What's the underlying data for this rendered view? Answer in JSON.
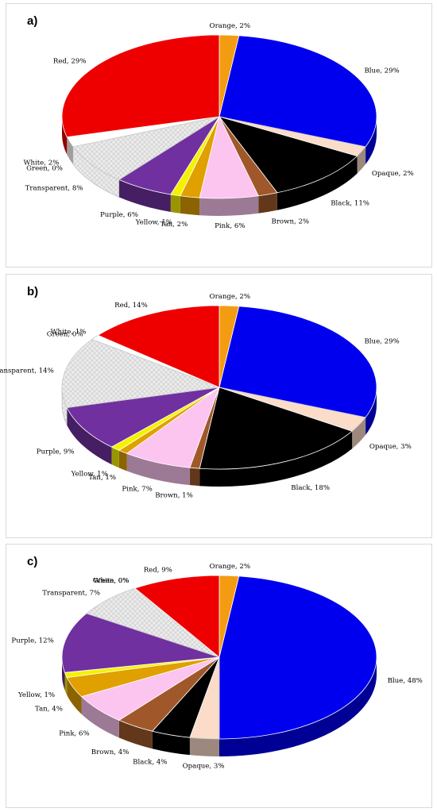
{
  "colors": {
    "Orange": "#f39c12",
    "Blue": "#0000ee",
    "Opaque": "#fbdcc8",
    "Black": "#000000",
    "Brown": "#a0582a",
    "Pink": "#fbc5f0",
    "Tan": "#e0a000",
    "Yellow": "#f5f200",
    "Purple": "#7030a0",
    "Transparent": "#e9e9e9",
    "Green": "#00a000",
    "White": "#ffffff",
    "Red": "#ee0000"
  },
  "chart_data": [
    {
      "panel_label": "a)",
      "type": "pie",
      "slices": [
        {
          "name": "Orange",
          "value": 2,
          "label": "Orange, 2%"
        },
        {
          "name": "Blue",
          "value": 29,
          "label": "Blue, 29%"
        },
        {
          "name": "Opaque",
          "value": 2,
          "label": "Opaque, 2%"
        },
        {
          "name": "Black",
          "value": 11,
          "label": "Black, 11%"
        },
        {
          "name": "Brown",
          "value": 2,
          "label": "Brown, 2%"
        },
        {
          "name": "Pink",
          "value": 6,
          "label": "Pink, 6%"
        },
        {
          "name": "Tan",
          "value": 2,
          "label": "Tan, 2%"
        },
        {
          "name": "Yellow",
          "value": 1,
          "label": "Yellow, 1%"
        },
        {
          "name": "Purple",
          "value": 6,
          "label": "Purple, 6%"
        },
        {
          "name": "Transparent",
          "value": 8,
          "label": "Transparent, 8%"
        },
        {
          "name": "Green",
          "value": 0,
          "label": "Green, 0%"
        },
        {
          "name": "White",
          "value": 2,
          "label": "White, 2%"
        },
        {
          "name": "Red",
          "value": 29,
          "label": "Red, 29%"
        }
      ]
    },
    {
      "panel_label": "b)",
      "type": "pie",
      "slices": [
        {
          "name": "Orange",
          "value": 2,
          "label": "Orange, 2%"
        },
        {
          "name": "Blue",
          "value": 29,
          "label": "Blue, 29%"
        },
        {
          "name": "Opaque",
          "value": 3,
          "label": "Opaque, 3%"
        },
        {
          "name": "Black",
          "value": 18,
          "label": "Black, 18%"
        },
        {
          "name": "Brown",
          "value": 1,
          "label": "Brown, 1%"
        },
        {
          "name": "Pink",
          "value": 7,
          "label": "Pink, 7%"
        },
        {
          "name": "Tan",
          "value": 1,
          "label": "Tan, 1%"
        },
        {
          "name": "Yellow",
          "value": 1,
          "label": "Yellow, 1%"
        },
        {
          "name": "Purple",
          "value": 9,
          "label": "Purple, 9%"
        },
        {
          "name": "Transparent",
          "value": 14,
          "label": "Transparent, 14%"
        },
        {
          "name": "Green",
          "value": 0,
          "label": "Green, 0%"
        },
        {
          "name": "White",
          "value": 1,
          "label": "White, 1%"
        },
        {
          "name": "Red",
          "value": 14,
          "label": "Red, 14%"
        }
      ]
    },
    {
      "panel_label": "c)",
      "type": "pie",
      "slices": [
        {
          "name": "Orange",
          "value": 2,
          "label": "Orange, 2%"
        },
        {
          "name": "Blue",
          "value": 48,
          "label": "Blue, 48%"
        },
        {
          "name": "Opaque",
          "value": 3,
          "label": "Opaque, 3%"
        },
        {
          "name": "Black",
          "value": 4,
          "label": "Black, 4%"
        },
        {
          "name": "Brown",
          "value": 4,
          "label": "Brown, 4%"
        },
        {
          "name": "Pink",
          "value": 6,
          "label": "Pink, 6%"
        },
        {
          "name": "Tan",
          "value": 4,
          "label": "Tan, 4%"
        },
        {
          "name": "Yellow",
          "value": 1,
          "label": "Yellow, 1%"
        },
        {
          "name": "Purple",
          "value": 12,
          "label": "Purple, 12%"
        },
        {
          "name": "Transparent",
          "value": 7,
          "label": "Transparent, 7%"
        },
        {
          "name": "Green",
          "value": 0,
          "label": "Green, 0%"
        },
        {
          "name": "White",
          "value": 0,
          "label": "White, 0%"
        },
        {
          "name": "Red",
          "value": 9,
          "label": "Red, 9%"
        }
      ]
    }
  ]
}
